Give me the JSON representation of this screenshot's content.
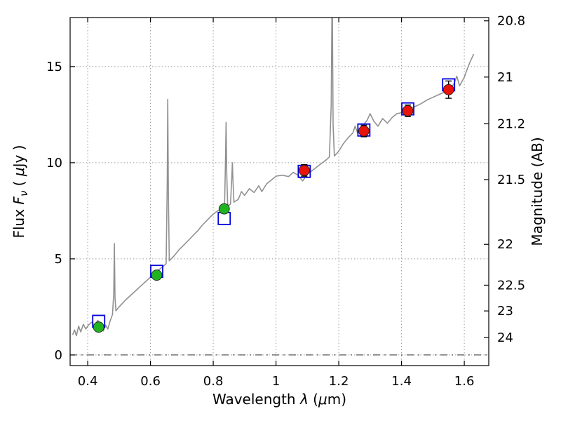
{
  "figure": {
    "background": "#ffffff"
  },
  "chart_data": {
    "type": "line+scatter",
    "title": "",
    "xlabel": {
      "text": "Wavelength λ (μm)",
      "segments": [
        {
          "t": "Wavelength  ",
          "i": false
        },
        {
          "t": "λ",
          "i": true
        },
        {
          "t": " (",
          "i": false
        },
        {
          "t": "μ",
          "i": true
        },
        {
          "t": "m)",
          "i": false
        }
      ]
    },
    "ylabel_left": {
      "text": "Flux Fν ( μJy )",
      "segments": [
        {
          "t": "Flux  ",
          "i": false
        },
        {
          "t": "F",
          "i": true
        },
        {
          "t": "ν",
          "i": true,
          "sub": true
        },
        {
          "t": "  ( ",
          "i": false
        },
        {
          "t": "μ",
          "i": true
        },
        {
          "t": "Jy )",
          "i": false
        }
      ]
    },
    "ylabel_right": {
      "text": "Magnitude (AB)",
      "segments": [
        {
          "t": "Magnitude (AB)",
          "i": false
        }
      ]
    },
    "xlim": [
      0.344,
      1.678
    ],
    "ylim": [
      -0.55,
      17.55
    ],
    "ab_zeropoint": 23.9,
    "grid": "dotted",
    "zero_line_y": 0,
    "x_ticks": {
      "values": [
        0.4,
        0.6,
        0.8,
        1.0,
        1.2,
        1.4,
        1.6
      ],
      "labels": [
        "0.4",
        "0.6",
        "0.8",
        "1",
        "1.2",
        "1.4",
        "1.6"
      ]
    },
    "y_ticks_left": {
      "values": [
        0,
        5,
        10,
        15
      ],
      "labels": [
        "0",
        "5",
        "10",
        "15"
      ]
    },
    "y_ticks_right": {
      "values": [
        20.8,
        21,
        21.2,
        21.5,
        22,
        22.5,
        23,
        24
      ],
      "labels": [
        "20.8",
        "21",
        "21.2",
        "21.5",
        "22",
        "22.5",
        "23",
        "24"
      ]
    },
    "series": [
      {
        "name": "model-spectrum",
        "type": "line",
        "color": "#919191",
        "width": 1.6,
        "points": [
          [
            0.352,
            1.05
          ],
          [
            0.358,
            1.3
          ],
          [
            0.364,
            1.0
          ],
          [
            0.371,
            1.5
          ],
          [
            0.378,
            1.2
          ],
          [
            0.386,
            1.6
          ],
          [
            0.394,
            1.35
          ],
          [
            0.402,
            1.55
          ],
          [
            0.412,
            1.7
          ],
          [
            0.422,
            1.55
          ],
          [
            0.432,
            1.8
          ],
          [
            0.442,
            1.6
          ],
          [
            0.45,
            1.25
          ],
          [
            0.457,
            1.55
          ],
          [
            0.464,
            1.35
          ],
          [
            0.472,
            1.8
          ],
          [
            0.479,
            2.1
          ],
          [
            0.483,
            3.2
          ],
          [
            0.485,
            5.8
          ],
          [
            0.487,
            3.0
          ],
          [
            0.49,
            2.3
          ],
          [
            0.5,
            2.5
          ],
          [
            0.52,
            2.85
          ],
          [
            0.54,
            3.15
          ],
          [
            0.56,
            3.45
          ],
          [
            0.58,
            3.75
          ],
          [
            0.6,
            4.05
          ],
          [
            0.62,
            4.35
          ],
          [
            0.64,
            4.6
          ],
          [
            0.65,
            4.75
          ],
          [
            0.6535,
            9.0
          ],
          [
            0.655,
            13.3
          ],
          [
            0.657,
            8.5
          ],
          [
            0.66,
            4.9
          ],
          [
            0.675,
            5.15
          ],
          [
            0.69,
            5.45
          ],
          [
            0.705,
            5.7
          ],
          [
            0.72,
            5.95
          ],
          [
            0.735,
            6.2
          ],
          [
            0.75,
            6.45
          ],
          [
            0.765,
            6.75
          ],
          [
            0.78,
            7.0
          ],
          [
            0.795,
            7.25
          ],
          [
            0.81,
            7.45
          ],
          [
            0.825,
            7.6
          ],
          [
            0.836,
            7.7
          ],
          [
            0.839,
            10.0
          ],
          [
            0.841,
            12.1
          ],
          [
            0.843,
            9.5
          ],
          [
            0.846,
            7.75
          ],
          [
            0.855,
            7.85
          ],
          [
            0.859,
            9.2
          ],
          [
            0.861,
            10.0
          ],
          [
            0.863,
            9.0
          ],
          [
            0.866,
            7.95
          ],
          [
            0.88,
            8.1
          ],
          [
            0.89,
            8.5
          ],
          [
            0.9,
            8.3
          ],
          [
            0.915,
            8.65
          ],
          [
            0.93,
            8.45
          ],
          [
            0.945,
            8.8
          ],
          [
            0.955,
            8.5
          ],
          [
            0.97,
            8.9
          ],
          [
            0.985,
            9.1
          ],
          [
            1.0,
            9.3
          ],
          [
            1.02,
            9.35
          ],
          [
            1.04,
            9.28
          ],
          [
            1.055,
            9.5
          ],
          [
            1.07,
            9.35
          ],
          [
            1.085,
            9.05
          ],
          [
            1.1,
            9.4
          ],
          [
            1.12,
            9.65
          ],
          [
            1.14,
            9.9
          ],
          [
            1.16,
            10.15
          ],
          [
            1.17,
            10.3
          ],
          [
            1.176,
            13.0
          ],
          [
            1.179,
            19.5
          ],
          [
            1.182,
            12.0
          ],
          [
            1.186,
            10.35
          ],
          [
            1.2,
            10.6
          ],
          [
            1.215,
            11.0
          ],
          [
            1.23,
            11.3
          ],
          [
            1.245,
            11.55
          ],
          [
            1.252,
            11.9
          ],
          [
            1.26,
            11.55
          ],
          [
            1.275,
            11.9
          ],
          [
            1.29,
            12.2
          ],
          [
            1.3,
            12.55
          ],
          [
            1.312,
            12.15
          ],
          [
            1.325,
            11.9
          ],
          [
            1.34,
            12.3
          ],
          [
            1.355,
            12.05
          ],
          [
            1.37,
            12.35
          ],
          [
            1.385,
            12.55
          ],
          [
            1.4,
            12.6
          ],
          [
            1.42,
            12.8
          ],
          [
            1.44,
            12.9
          ],
          [
            1.46,
            13.05
          ],
          [
            1.48,
            13.25
          ],
          [
            1.5,
            13.4
          ],
          [
            1.52,
            13.55
          ],
          [
            1.54,
            13.7
          ],
          [
            1.555,
            13.85
          ],
          [
            1.567,
            14.1
          ],
          [
            1.576,
            14.5
          ],
          [
            1.585,
            14.0
          ],
          [
            1.6,
            14.45
          ],
          [
            1.61,
            14.9
          ],
          [
            1.62,
            15.3
          ],
          [
            1.63,
            15.65
          ]
        ]
      },
      {
        "name": "model-photometry-squares",
        "type": "scatter",
        "marker": "square-open",
        "color": "#0000dd",
        "size": 17,
        "points": [
          [
            0.435,
            1.75
          ],
          [
            0.62,
            4.35
          ],
          [
            0.835,
            7.1
          ],
          [
            1.09,
            9.55
          ],
          [
            1.28,
            11.7
          ],
          [
            1.42,
            12.8
          ],
          [
            1.55,
            14.05
          ]
        ]
      },
      {
        "name": "observed-photometry-optical",
        "type": "scatter",
        "marker": "circle",
        "color": "#21b421",
        "size": 15,
        "points": [
          [
            0.435,
            1.45
          ],
          [
            0.62,
            4.15
          ],
          [
            0.835,
            7.6
          ]
        ],
        "yerr": [
          0.15,
          0.2,
          0.2
        ]
      },
      {
        "name": "observed-photometry-infrared",
        "type": "scatter",
        "marker": "circle",
        "color": "#e81309",
        "size": 15,
        "points": [
          [
            1.09,
            9.6
          ],
          [
            1.28,
            11.65
          ],
          [
            1.42,
            12.7
          ],
          [
            1.55,
            13.8
          ]
        ],
        "yerr": [
          0.3,
          0.3,
          0.3,
          0.45
        ]
      }
    ]
  }
}
